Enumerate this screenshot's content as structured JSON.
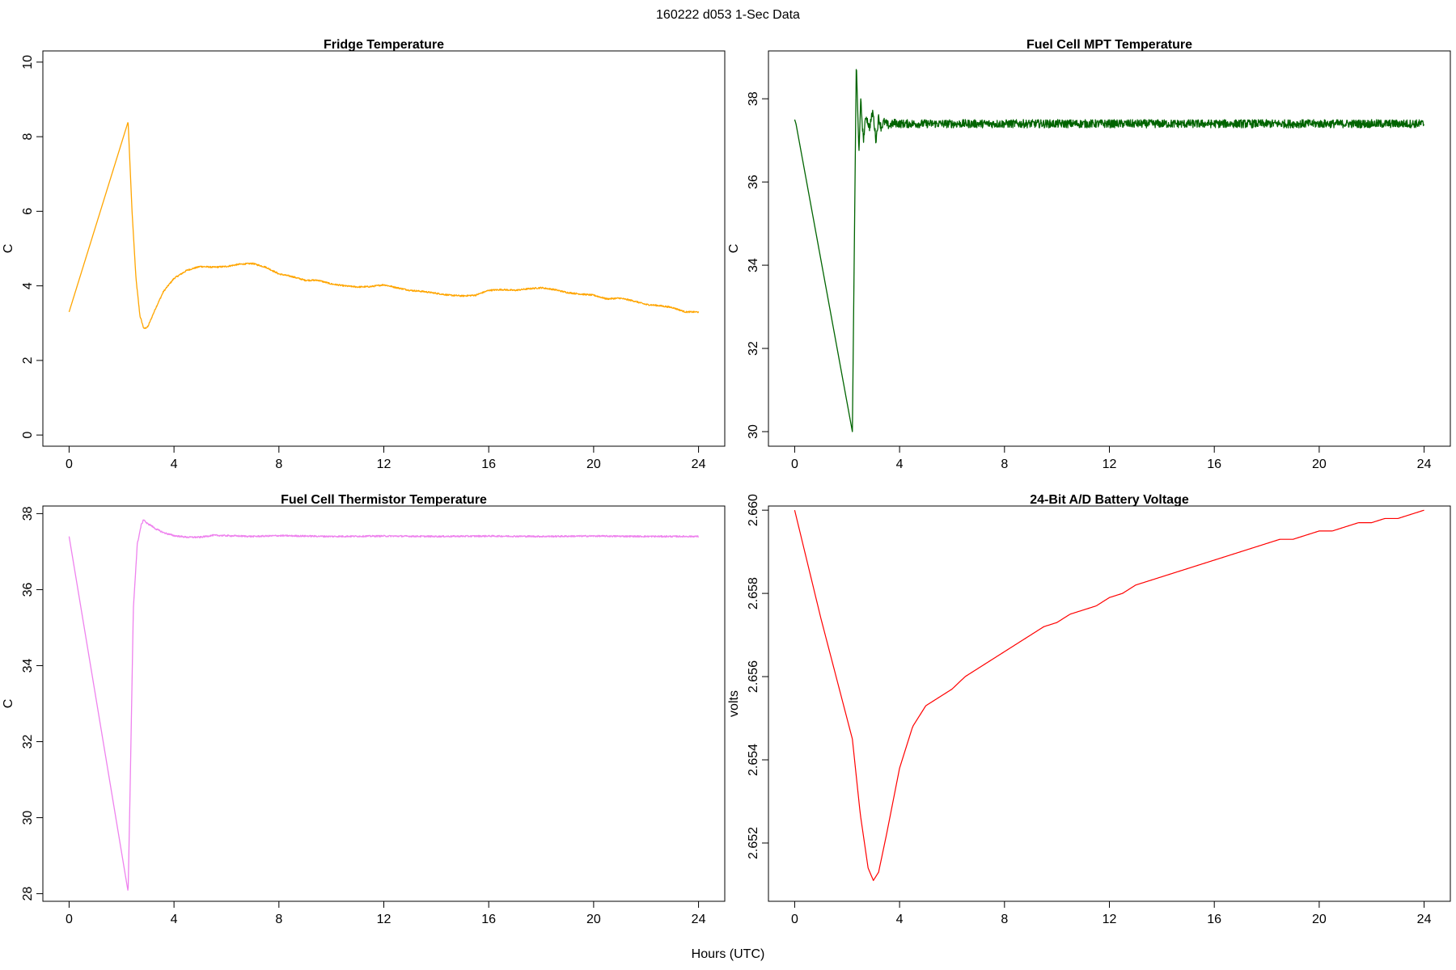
{
  "figure": {
    "title": "160222   d053   1-Sec Data",
    "xlabel": "Hours (UTC)"
  },
  "chart_data": [
    {
      "type": "line",
      "title": "Fridge Temperature",
      "xlabel": "",
      "ylabel": "C",
      "xlim": [
        -1,
        25
      ],
      "ylim": [
        -0.3,
        10.3
      ],
      "xticks": [
        0,
        4,
        8,
        12,
        16,
        20,
        24
      ],
      "yticks": [
        0,
        2,
        4,
        6,
        8,
        10
      ],
      "series": [
        {
          "name": "Fridge Temperature",
          "color": "#FFA500",
          "x": [
            0,
            2.25,
            2.4,
            2.55,
            2.7,
            2.85,
            3.0,
            3.3,
            3.6,
            4.0,
            4.5,
            5.0,
            5.5,
            6.0,
            6.5,
            7.0,
            7.5,
            8.0,
            8.5,
            9.0,
            9.5,
            10.0,
            10.5,
            11.0,
            11.5,
            12.0,
            12.5,
            13.0,
            13.5,
            14.0,
            14.5,
            15.0,
            15.5,
            16.0,
            16.5,
            17.0,
            17.5,
            18.0,
            18.5,
            19.0,
            19.5,
            20.0,
            20.5,
            21.0,
            21.5,
            22.0,
            22.5,
            23.0,
            23.5,
            24.0
          ],
          "y": [
            3.3,
            8.4,
            6.0,
            4.2,
            3.2,
            2.85,
            2.9,
            3.4,
            3.85,
            4.2,
            4.42,
            4.52,
            4.5,
            4.52,
            4.58,
            4.6,
            4.5,
            4.32,
            4.25,
            4.15,
            4.15,
            4.05,
            4.0,
            3.97,
            3.98,
            4.03,
            3.95,
            3.88,
            3.85,
            3.8,
            3.75,
            3.73,
            3.75,
            3.88,
            3.9,
            3.88,
            3.92,
            3.95,
            3.9,
            3.82,
            3.78,
            3.75,
            3.65,
            3.67,
            3.6,
            3.5,
            3.47,
            3.42,
            3.3,
            3.3
          ],
          "noise": 0.02
        }
      ]
    },
    {
      "type": "line",
      "title": "Fuel Cell MPT Temperature",
      "xlabel": "",
      "ylabel": "C",
      "xlim": [
        -1,
        25
      ],
      "ylim": [
        29.65,
        39.15
      ],
      "xticks": [
        0,
        4,
        8,
        12,
        16,
        20,
        24
      ],
      "yticks": [
        30,
        32,
        34,
        36,
        38
      ],
      "series": [
        {
          "name": "Fuel Cell MPT Temperature",
          "color": "#006400",
          "x": [
            0,
            0.05,
            2.2,
            2.35,
            2.45,
            2.52,
            2.62,
            2.72,
            2.85,
            2.98,
            3.1,
            3.2,
            3.3,
            3.4,
            3.6,
            3.8,
            4.0,
            24.0
          ],
          "y": [
            37.5,
            37.4,
            30.0,
            38.9,
            36.7,
            37.95,
            37.0,
            37.6,
            37.3,
            37.7,
            37.0,
            37.55,
            37.3,
            37.45,
            37.35,
            37.42,
            37.4,
            37.4
          ],
          "noise": 0.1
        }
      ]
    },
    {
      "type": "line",
      "title": "Fuel Cell Thermistor Temperature",
      "xlabel": "",
      "ylabel": "C",
      "xlim": [
        -1,
        25
      ],
      "ylim": [
        27.8,
        38.2
      ],
      "xticks": [
        0,
        4,
        8,
        12,
        16,
        20,
        24
      ],
      "yticks": [
        28,
        30,
        32,
        34,
        36,
        38
      ],
      "series": [
        {
          "name": "Fuel Cell Thermistor Temperature",
          "color": "#EE82EE",
          "x": [
            0,
            2.25,
            2.32,
            2.45,
            2.6,
            2.75,
            2.85,
            2.95,
            3.1,
            3.3,
            3.6,
            4.0,
            4.5,
            5.0,
            5.5,
            6.0,
            7.0,
            8.0,
            10.0,
            12.0,
            14.0,
            16.0,
            18.0,
            20.0,
            22.0,
            24.0
          ],
          "y": [
            37.4,
            28.05,
            30.5,
            35.5,
            37.2,
            37.7,
            37.85,
            37.75,
            37.7,
            37.6,
            37.5,
            37.42,
            37.38,
            37.38,
            37.43,
            37.42,
            37.4,
            37.42,
            37.4,
            37.41,
            37.4,
            37.41,
            37.4,
            37.41,
            37.4,
            37.4
          ],
          "noise": 0.02
        }
      ]
    },
    {
      "type": "line",
      "title": "24-Bit A/D Battery Voltage",
      "xlabel": "",
      "ylabel": "volts",
      "xlim": [
        -1,
        25
      ],
      "ylim": [
        2.6506,
        2.6601
      ],
      "xticks": [
        0,
        4,
        8,
        12,
        16,
        20,
        24
      ],
      "yticks": [
        2.652,
        2.654,
        2.656,
        2.658,
        2.66
      ],
      "series": [
        {
          "name": "24-Bit A/D Battery Voltage",
          "color": "#FF0000",
          "x": [
            0,
            1.0,
            2.2,
            2.5,
            2.8,
            3.0,
            3.2,
            3.5,
            4.0,
            4.5,
            5.0,
            5.5,
            6.0,
            6.5,
            7.0,
            7.5,
            8.0,
            8.5,
            9.0,
            9.5,
            10.0,
            10.5,
            11.0,
            11.5,
            12.0,
            12.5,
            13.0,
            13.5,
            14.0,
            14.5,
            15.0,
            15.5,
            16.0,
            16.5,
            17.0,
            17.5,
            18.0,
            18.5,
            19.0,
            19.5,
            20.0,
            20.5,
            21.0,
            21.5,
            22.0,
            22.5,
            23.0,
            23.5,
            24.0
          ],
          "y": [
            2.66,
            2.6574,
            2.6545,
            2.6527,
            2.6514,
            2.6511,
            2.6513,
            2.6522,
            2.6538,
            2.6548,
            2.6553,
            2.6555,
            2.6557,
            2.656,
            2.6562,
            2.6564,
            2.6566,
            2.6568,
            2.657,
            2.6572,
            2.6573,
            2.6575,
            2.6576,
            2.6577,
            2.6579,
            2.658,
            2.6582,
            2.6583,
            2.6584,
            2.6585,
            2.6586,
            2.6587,
            2.6588,
            2.6589,
            2.659,
            2.6591,
            2.6592,
            2.6593,
            2.6593,
            2.6594,
            2.6595,
            2.6595,
            2.6596,
            2.6597,
            2.6597,
            2.6598,
            2.6598,
            2.6599,
            2.66
          ],
          "noise": 0
        }
      ]
    }
  ]
}
